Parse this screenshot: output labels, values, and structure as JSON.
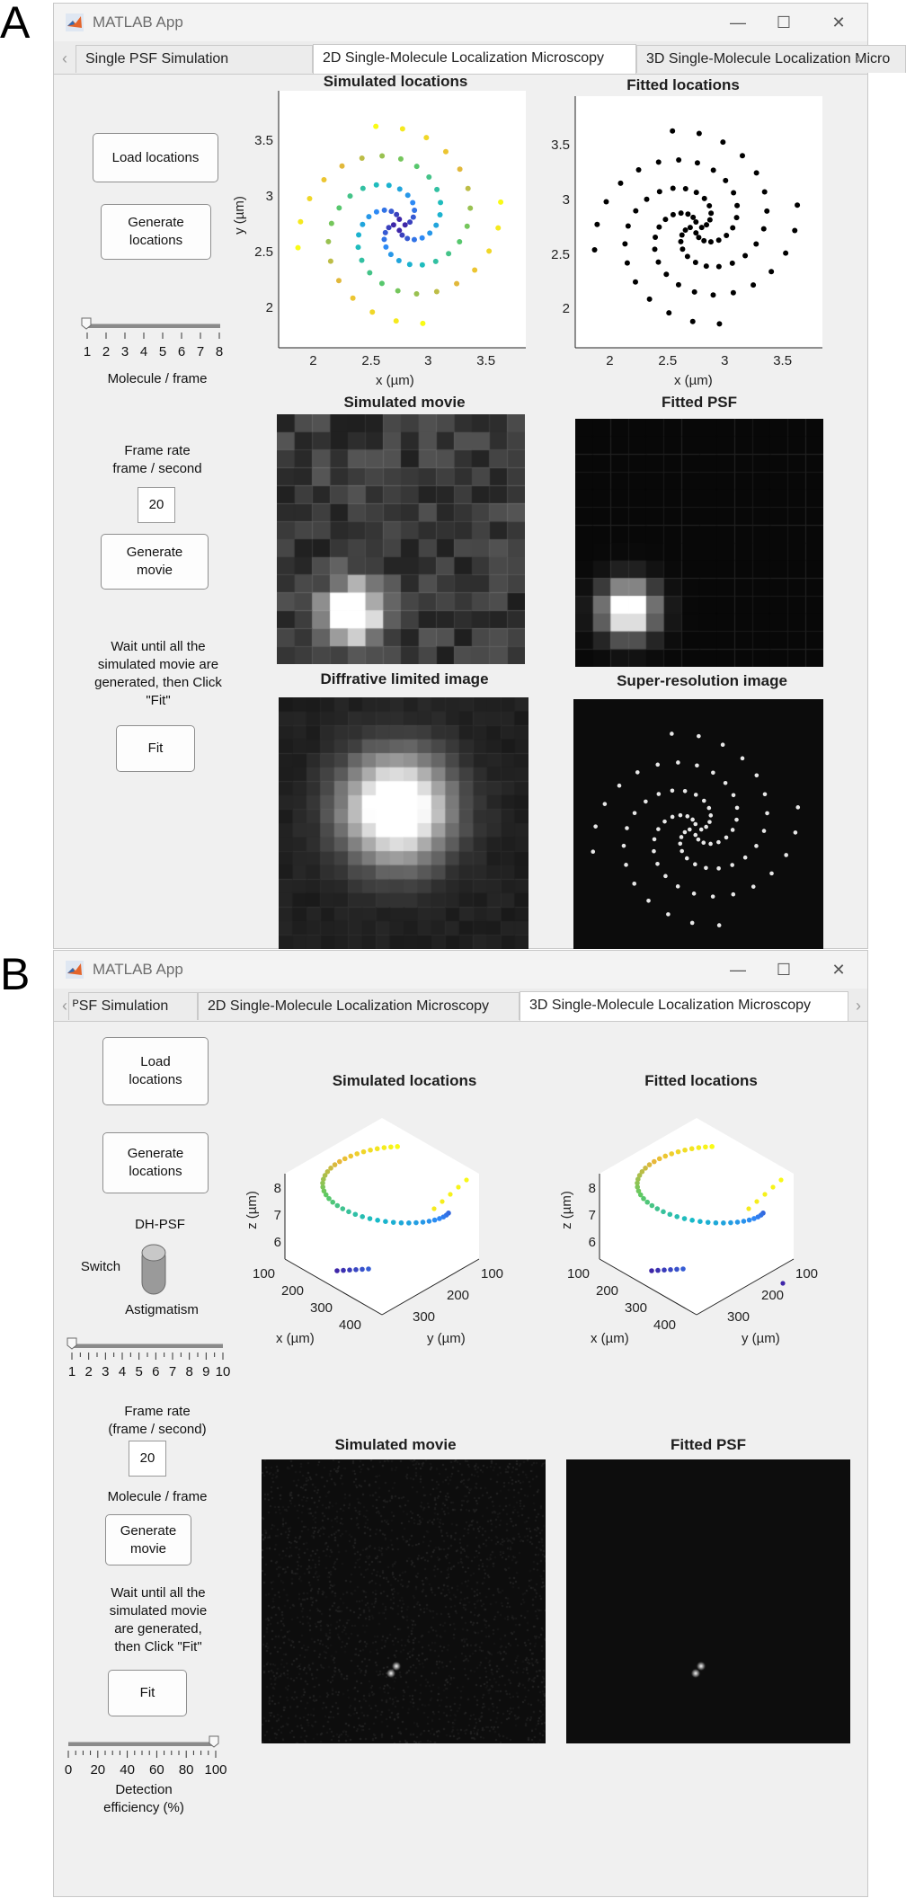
{
  "panel_a": {
    "letter": "A",
    "window": {
      "title": "MATLAB App",
      "tabs": [
        "Single PSF Simulation",
        "2D Single-Molecule Localization Microscopy",
        "3D Single-Molecule Localization Micro"
      ],
      "active_tab": 1
    },
    "controls": {
      "load_label": "Load locations",
      "generate_locations_label": "Generate\nlocations",
      "slider": {
        "ticks": [
          "1",
          "2",
          "3",
          "4",
          "5",
          "6",
          "7",
          "8"
        ],
        "value": 1,
        "caption": "Molecule / frame"
      },
      "frame_rate_label": "Frame rate\nframe  / second",
      "frame_rate_value": "20",
      "generate_movie_label": "Generate\nmovie",
      "wait_text": "Wait until all the\nsimulated movie are\ngenerated, then Click\n\"Fit\"",
      "fit_label": "Fit"
    },
    "plots": {
      "simulated_locations": {
        "title": "Simulated locations",
        "xlabel": "x (µm)",
        "ylabel": "y (µm)",
        "xticks": [
          "2",
          "2.5",
          "3",
          "3.5"
        ],
        "yticks": [
          "3.5",
          "3",
          "2.5",
          "2"
        ]
      },
      "fitted_locations": {
        "title": "Fitted locations",
        "xlabel": "x (µm)",
        "xticks": [
          "2",
          "2.5",
          "3",
          "3.5"
        ],
        "yticks": [
          "3.5",
          "3",
          "2.5",
          "2"
        ]
      },
      "simulated_movie": {
        "title": "Simulated movie"
      },
      "fitted_psf": {
        "title": "Fitted PSF"
      },
      "diffraction_image": {
        "title": "Diffrative limited image"
      },
      "super_resolution": {
        "title": "Super-resolution image"
      }
    }
  },
  "panel_b": {
    "letter": "B",
    "window": {
      "title": "MATLAB App",
      "tabs": [
        "ᴾSF Simulation",
        "2D Single-Molecule Localization Microscopy",
        "3D Single-Molecule Localization Microscopy"
      ],
      "active_tab": 2
    },
    "controls": {
      "load_label": "Load\nlocations",
      "generate_locations_label": "Generate\nlocations",
      "switch_top_label": "DH-PSF",
      "switch_side_label": "Switch",
      "switch_bottom_label": "Astigmatism",
      "slider": {
        "ticks": [
          "1",
          "2",
          "3",
          "4",
          "5",
          "6",
          "7",
          "8",
          "9",
          "10"
        ],
        "value": 1
      },
      "frame_rate_label": "Frame rate\n(frame / second)",
      "frame_rate_value": "20",
      "molecule_label": "Molecule / frame",
      "generate_movie_label": "Generate\nmovie",
      "wait_text": "Wait until all the\nsimulated movie\nare generated,\nthen Click \"Fit\"",
      "fit_label": "Fit",
      "efficiency_slider": {
        "ticks": [
          "0",
          "20",
          "40",
          "60",
          "80",
          "100"
        ],
        "value": 100,
        "caption": "Detection\nefficiency (%)"
      }
    },
    "plots": {
      "simulated_locations": {
        "title": "Simulated locations",
        "xlabel": "x (µm)",
        "ylabel": "y (µm)",
        "zlabel": "z (µm)",
        "zticks": [
          "8",
          "7",
          "6"
        ],
        "xticks": [
          "100",
          "200",
          "300",
          "400"
        ],
        "yticks": [
          "100",
          "200",
          "300"
        ]
      },
      "fitted_locations": {
        "title": "Fitted locations",
        "xlabel": "x (µm)",
        "ylabel": "y (µm)",
        "zlabel": "z (µm)",
        "zticks": [
          "8",
          "7",
          "6"
        ],
        "xticks": [
          "100",
          "200",
          "300",
          "400"
        ],
        "yticks": [
          "100",
          "200",
          "300"
        ]
      },
      "simulated_movie": {
        "title": "Simulated movie"
      },
      "fitted_psf": {
        "title": "Fitted PSF"
      }
    }
  },
  "colors": {
    "window_bg": "#f0f0f0",
    "button_border": "#8f8f8f",
    "scatter_black": "#000000",
    "parula_start": "#3e26a8",
    "parula_end": "#f9fb15"
  }
}
